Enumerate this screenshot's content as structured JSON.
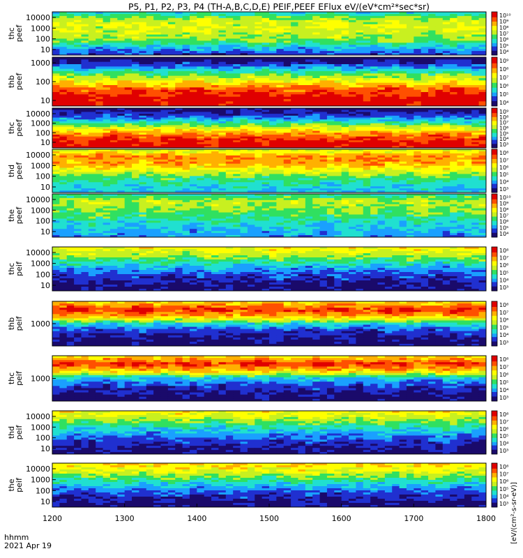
{
  "chart_data": {
    "type": "heatmap",
    "title": "P5, P1, P2, P3, P4 (TH-A,B,C,D,E) PEIF,PEEF EFlux eV/(eV*cm²*sec*sr)",
    "x_ticks": [
      "1200",
      "1300",
      "1400",
      "1500",
      "1600",
      "1700",
      "1800"
    ],
    "x_range": [
      1200,
      1800
    ],
    "x_footer": [
      "hhmm",
      "2021 Apr 19"
    ],
    "colorbar_unit": "[eV/(cm²-s-sr-eV)]",
    "colorscale": [
      "#1a0a6b",
      "#2030d0",
      "#1aa0ff",
      "#20e0d0",
      "#30e060",
      "#c8f020",
      "#ffff00",
      "#ffb000",
      "#ff5000",
      "#e00000"
    ],
    "panels": [
      {
        "label": [
          "thc",
          "peef"
        ],
        "y_ticks": [
          "10000",
          "1000",
          "100",
          "10"
        ],
        "y_scale": "log",
        "cbar_ticks": [
          "10¹⁰",
          "10⁹",
          "10⁸",
          "10⁷",
          "10⁶",
          "10⁵",
          "10⁴"
        ],
        "profile": [
          0.35,
          0.55,
          0.6,
          0.55,
          0.5,
          0.3,
          0.15
        ]
      },
      {
        "label": [
          "thb",
          "peef"
        ],
        "y_ticks": [
          "1000",
          "100",
          "10"
        ],
        "y_scale": "log",
        "cbar_ticks": [
          "10⁹",
          "10⁸",
          "10⁷",
          "10⁶",
          "10⁵",
          "10⁴"
        ],
        "profile": [
          0.0,
          0.2,
          0.45,
          0.65,
          0.85,
          0.95,
          0.98
        ]
      },
      {
        "label": [
          "thc",
          "peef"
        ],
        "y_ticks": [
          "10000",
          "1000",
          "100",
          "10"
        ],
        "y_scale": "log",
        "cbar_ticks": [
          "10⁹",
          "10⁸",
          "10⁷",
          "10⁶",
          "10⁵",
          "10⁴",
          "10³"
        ],
        "profile": [
          0.05,
          0.15,
          0.35,
          0.6,
          0.8,
          0.92,
          0.97
        ]
      },
      {
        "label": [
          "thd",
          "peef"
        ],
        "y_ticks": [
          "10000",
          "1000",
          "100",
          "10"
        ],
        "y_scale": "log",
        "cbar_ticks": [
          "10⁸",
          "10⁷",
          "10⁶",
          "10⁵",
          "10⁴",
          "10³"
        ],
        "profile": [
          0.6,
          0.8,
          0.75,
          0.6,
          0.45,
          0.35,
          0.3
        ]
      },
      {
        "label": [
          "the",
          "peef"
        ],
        "y_ticks": [
          "10000",
          "1000",
          "100",
          "10"
        ],
        "y_scale": "log",
        "cbar_ticks": [
          "10¹⁰",
          "10⁹",
          "10⁸",
          "10⁷",
          "10⁶",
          "10⁵",
          "10⁴"
        ],
        "profile": [
          0.4,
          0.55,
          0.5,
          0.45,
          0.35,
          0.3,
          0.25
        ]
      },
      {
        "label": [
          "thc",
          "peif"
        ],
        "y_ticks": [
          "10000",
          "1000",
          "100",
          "10"
        ],
        "y_scale": "log",
        "cbar_ticks": [
          "10⁸",
          "10⁷",
          "10⁶",
          "10⁵",
          "10⁴",
          "10³"
        ],
        "profile": [
          0.65,
          0.55,
          0.4,
          0.25,
          0.15,
          0.08,
          0.05
        ]
      },
      {
        "label": [
          "thb",
          "peif"
        ],
        "y_ticks": [
          "1000"
        ],
        "y_scale": "log",
        "cbar_ticks": [
          "10⁸",
          "10⁷",
          "10⁶",
          "10⁵",
          "10⁴",
          "10³"
        ],
        "profile": [
          0.7,
          0.9,
          0.75,
          0.35,
          0.15,
          0.08,
          0.03
        ]
      },
      {
        "label": [
          "thc",
          "peif"
        ],
        "y_ticks": [
          "1000"
        ],
        "y_scale": "log",
        "cbar_ticks": [
          "10⁸",
          "10⁷",
          "10⁶",
          "10⁵",
          "10⁴",
          "10³"
        ],
        "profile": [
          0.7,
          0.9,
          0.7,
          0.3,
          0.15,
          0.08,
          0.03
        ]
      },
      {
        "label": [
          "thd",
          "peif"
        ],
        "y_ticks": [
          "10000",
          "1000",
          "100",
          "10"
        ],
        "y_scale": "log",
        "cbar_ticks": [
          "10⁸",
          "10⁷",
          "10⁶",
          "10⁵",
          "10⁴",
          "10³"
        ],
        "profile": [
          0.65,
          0.55,
          0.4,
          0.28,
          0.18,
          0.1,
          0.06
        ]
      },
      {
        "label": [
          "the",
          "peif"
        ],
        "y_ticks": [
          "10000",
          "1000",
          "100",
          "10"
        ],
        "y_scale": "log",
        "cbar_ticks": [
          "10⁸",
          "10⁷",
          "10⁶",
          "10⁵",
          "10⁴",
          "10³"
        ],
        "profile": [
          0.7,
          0.6,
          0.45,
          0.3,
          0.18,
          0.1,
          0.06
        ]
      }
    ]
  }
}
